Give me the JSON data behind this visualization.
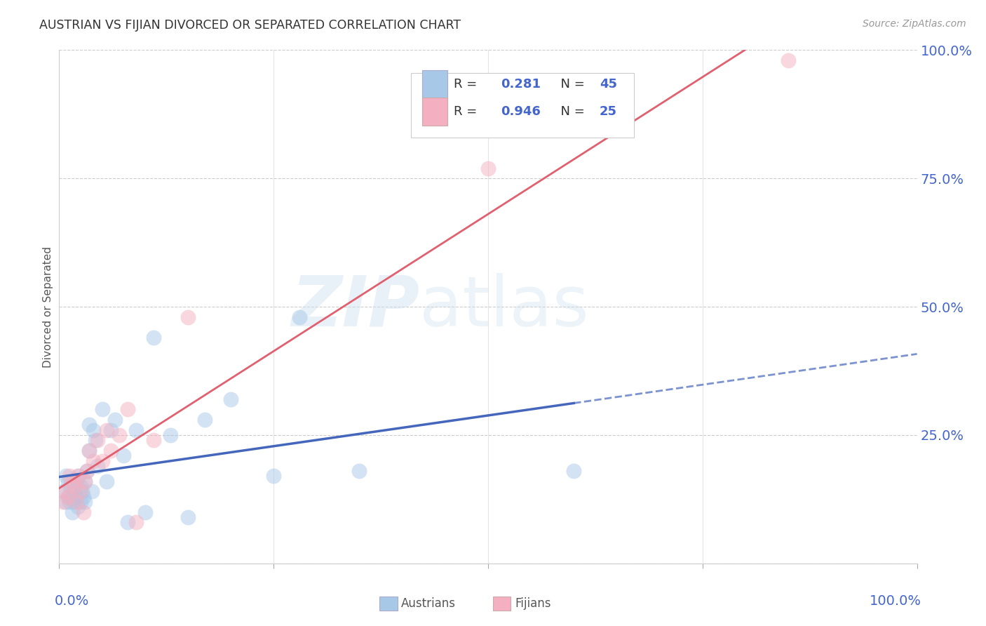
{
  "title": "AUSTRIAN VS FIJIAN DIVORCED OR SEPARATED CORRELATION CHART",
  "source": "Source: ZipAtlas.com",
  "ylabel": "Divorced or Separated",
  "ytick_labels": [
    "",
    "25.0%",
    "50.0%",
    "75.0%",
    "100.0%"
  ],
  "ytick_positions": [
    0.0,
    0.25,
    0.5,
    0.75,
    1.0
  ],
  "xtick_positions": [
    0.0,
    0.25,
    0.5,
    0.75,
    1.0
  ],
  "xlim": [
    0.0,
    1.0
  ],
  "ylim": [
    0.0,
    1.0
  ],
  "austrian_color": "#a8c8e8",
  "fijian_color": "#f4b0c0",
  "austrian_line_color": "#4466bb",
  "fijian_line_color": "#e06070",
  "background_color": "#ffffff",
  "austrians_scatter_x": [
    0.005,
    0.007,
    0.008,
    0.01,
    0.01,
    0.012,
    0.013,
    0.015,
    0.015,
    0.017,
    0.018,
    0.02,
    0.02,
    0.022,
    0.023,
    0.025,
    0.025,
    0.027,
    0.028,
    0.03,
    0.03,
    0.032,
    0.035,
    0.035,
    0.038,
    0.04,
    0.042,
    0.045,
    0.05,
    0.055,
    0.06,
    0.065,
    0.075,
    0.08,
    0.09,
    0.1,
    0.11,
    0.13,
    0.15,
    0.17,
    0.2,
    0.25,
    0.28,
    0.35,
    0.6
  ],
  "austrians_scatter_y": [
    0.14,
    0.12,
    0.17,
    0.13,
    0.16,
    0.12,
    0.15,
    0.1,
    0.13,
    0.12,
    0.14,
    0.13,
    0.16,
    0.11,
    0.17,
    0.12,
    0.15,
    0.14,
    0.13,
    0.16,
    0.12,
    0.18,
    0.27,
    0.22,
    0.14,
    0.26,
    0.24,
    0.19,
    0.3,
    0.16,
    0.26,
    0.28,
    0.21,
    0.08,
    0.26,
    0.1,
    0.44,
    0.25,
    0.09,
    0.28,
    0.32,
    0.17,
    0.48,
    0.18,
    0.18
  ],
  "fijians_scatter_x": [
    0.005,
    0.007,
    0.01,
    0.012,
    0.015,
    0.018,
    0.02,
    0.022,
    0.025,
    0.028,
    0.03,
    0.032,
    0.035,
    0.04,
    0.045,
    0.05,
    0.055,
    0.06,
    0.07,
    0.08,
    0.09,
    0.11,
    0.15,
    0.5,
    0.85
  ],
  "fijians_scatter_y": [
    0.12,
    0.14,
    0.13,
    0.17,
    0.16,
    0.15,
    0.12,
    0.17,
    0.14,
    0.1,
    0.16,
    0.18,
    0.22,
    0.2,
    0.24,
    0.2,
    0.26,
    0.22,
    0.25,
    0.3,
    0.08,
    0.24,
    0.48,
    0.77,
    0.98
  ],
  "legend_r1": "0.281",
  "legend_n1": "45",
  "legend_r2": "0.946",
  "legend_n2": "25",
  "legend_label1": "Austrians",
  "legend_label2": "Fijians"
}
